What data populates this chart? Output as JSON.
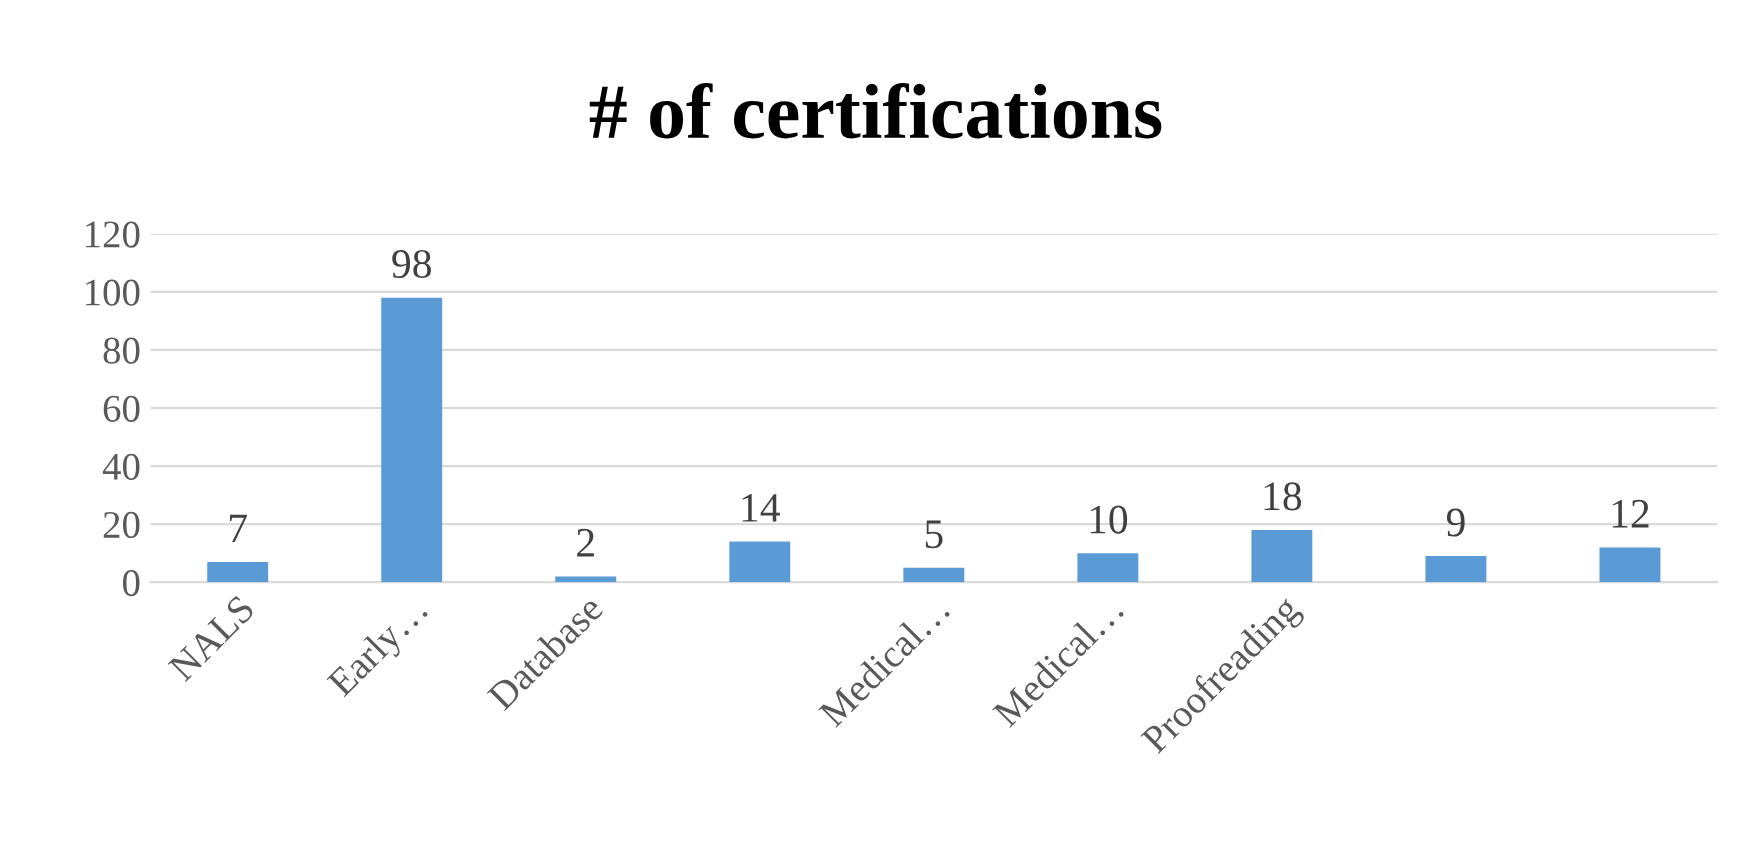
{
  "chart_data": {
    "type": "bar",
    "title": "# of certifications",
    "categories": [
      "NALS",
      "Early…",
      "Database",
      null,
      "Medical…",
      "Medical…",
      "Proofreading",
      null,
      null
    ],
    "values": [
      7,
      98,
      2,
      14,
      5,
      10,
      18,
      9,
      12
    ],
    "color": "#5b9bd5",
    "ylim": [
      0,
      120
    ],
    "yticks": [
      0,
      20,
      40,
      60,
      80,
      100,
      120
    ],
    "grid": "y",
    "data_labels": true
  }
}
